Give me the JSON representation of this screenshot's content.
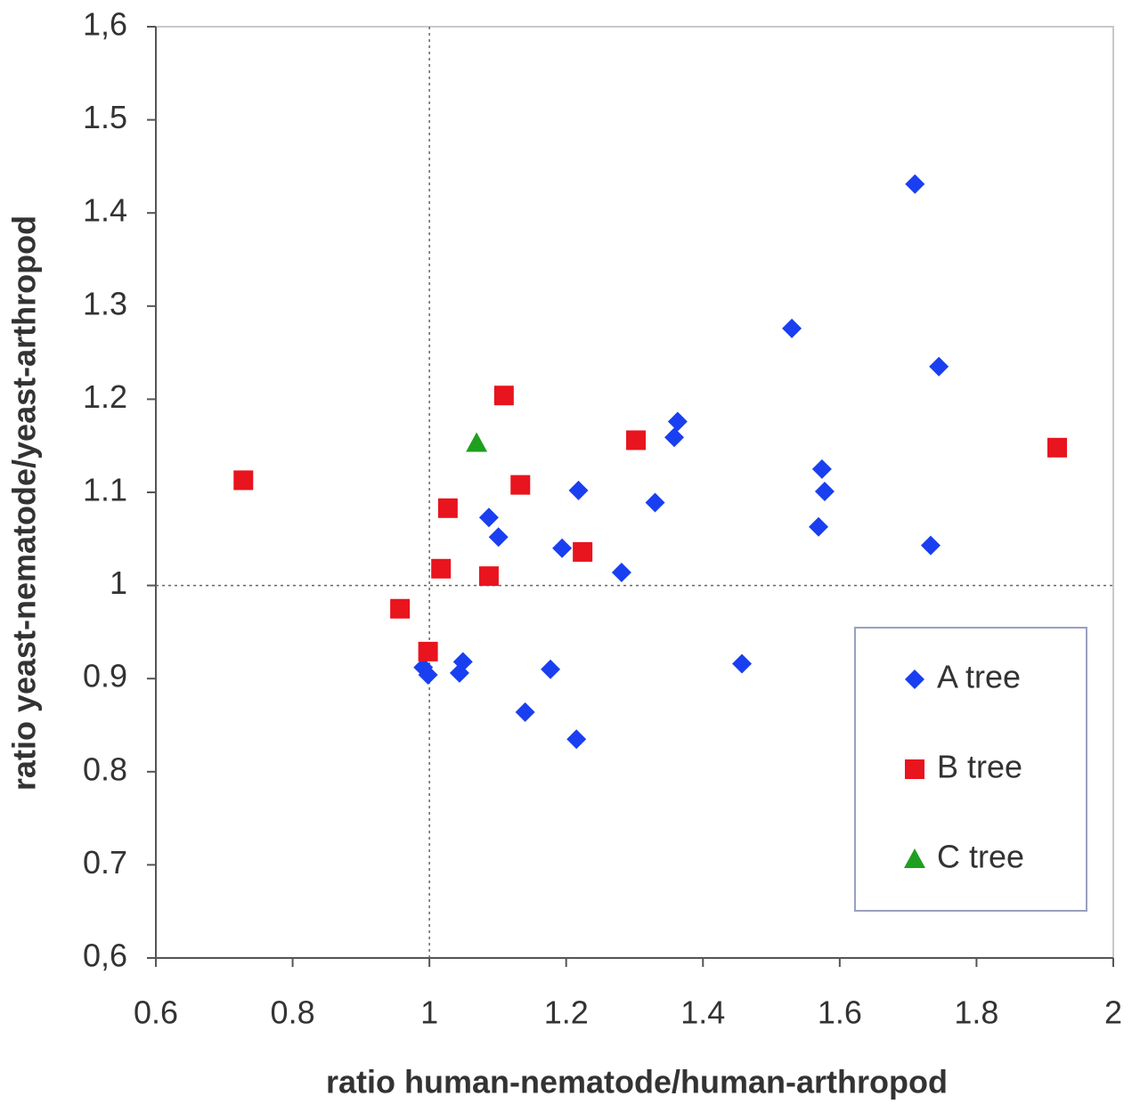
{
  "chart_data": {
    "type": "scatter",
    "x_label": "ratio human-nematode/human-arthropod",
    "y_label": "ratio yeast-nematode/yeast-arthropod",
    "xlim": [
      0.6,
      2
    ],
    "xticks": [
      0.6,
      0.8,
      1,
      1.2,
      1.4,
      1.6,
      1.8,
      2
    ],
    "ylim": [
      0.6,
      1.6
    ],
    "yticks": [
      {
        "value": 0.6,
        "label": "0,6"
      },
      {
        "value": 0.7,
        "label": "0.7"
      },
      {
        "value": 0.8,
        "label": "0.8"
      },
      {
        "value": 0.9,
        "label": "0.9"
      },
      1,
      1.1,
      1.2,
      1.3,
      1.4,
      1.5,
      {
        "value": 1.6,
        "label": "1,6"
      }
    ],
    "vlines": [
      1
    ],
    "hlines": [
      1
    ],
    "legend": "lower right",
    "series": [
      {
        "name": "A tree",
        "color": "#1a3ff0",
        "marker": "diamond",
        "x": [
          1.71,
          1.53,
          1.745,
          1.363,
          1.358,
          1.574,
          1.578,
          1.218,
          1.33,
          1.087,
          1.101,
          1.194,
          1.569,
          1.733,
          1.281,
          1.457,
          1.177,
          1.049,
          1.044,
          0.991,
          0.998,
          1.14,
          1.215
        ],
        "values": [
          1.431,
          1.276,
          1.235,
          1.176,
          1.159,
          1.125,
          1.101,
          1.102,
          1.089,
          1.073,
          1.052,
          1.04,
          1.063,
          1.043,
          1.014,
          0.916,
          0.91,
          0.918,
          0.906,
          0.912,
          0.904,
          0.864,
          0.835
        ]
      },
      {
        "name": "B tree",
        "color": "#e8141e",
        "marker": "square",
        "x": [
          0.728,
          1.109,
          1.302,
          1.918,
          1.133,
          1.027,
          1.224,
          1.017,
          1.087,
          0.957,
          0.998
        ],
        "values": [
          1.113,
          1.204,
          1.156,
          1.148,
          1.108,
          1.083,
          1.036,
          1.018,
          1.01,
          0.975,
          0.929
        ]
      },
      {
        "name": "C tree",
        "color": "#1ea01e",
        "marker": "triangle",
        "x": [
          1.069
        ],
        "values": [
          1.153
        ]
      }
    ]
  }
}
